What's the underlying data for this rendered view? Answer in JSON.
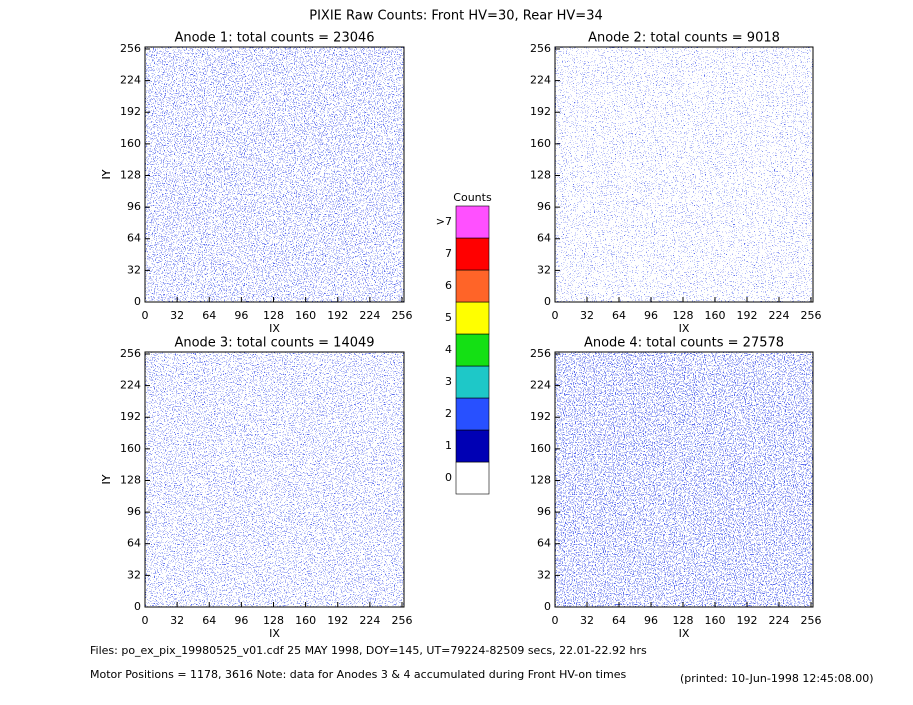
{
  "title": "PIXIE Raw Counts:  Front HV=30, Rear HV=34",
  "chart_data": [
    {
      "type": "heatmap",
      "title": "Anode 1: total counts = 23046",
      "xlabel": "IX",
      "ylabel": "IY",
      "xlim": [
        0,
        258
      ],
      "ylim": [
        0,
        258
      ],
      "xticks": [
        0,
        32,
        64,
        96,
        128,
        160,
        192,
        224,
        256
      ],
      "yticks": [
        0,
        32,
        64,
        96,
        128,
        160,
        192,
        224,
        256
      ]
    },
    {
      "type": "heatmap",
      "title": "Anode 2: total counts = 9018",
      "xlabel": "IX",
      "ylabel": "IY",
      "xlim": [
        0,
        258
      ],
      "ylim": [
        0,
        258
      ],
      "xticks": [
        0,
        32,
        64,
        96,
        128,
        160,
        192,
        224,
        256
      ],
      "yticks": [
        0,
        32,
        64,
        96,
        128,
        160,
        192,
        224,
        256
      ]
    },
    {
      "type": "heatmap",
      "title": "Anode 3: total counts = 14049",
      "xlabel": "IX",
      "ylabel": "IY",
      "xlim": [
        0,
        258
      ],
      "ylim": [
        0,
        258
      ],
      "xticks": [
        0,
        32,
        64,
        96,
        128,
        160,
        192,
        224,
        256
      ],
      "yticks": [
        0,
        32,
        64,
        96,
        128,
        160,
        192,
        224,
        256
      ]
    },
    {
      "type": "heatmap",
      "title": "Anode 4: total counts = 27578",
      "xlabel": "IX",
      "ylabel": "IY",
      "xlim": [
        0,
        258
      ],
      "ylim": [
        0,
        258
      ],
      "xticks": [
        0,
        32,
        64,
        96,
        128,
        160,
        192,
        224,
        256
      ],
      "yticks": [
        0,
        32,
        64,
        96,
        128,
        160,
        192,
        224,
        256
      ]
    }
  ],
  "colorbar": {
    "title": "Counts",
    "labels": [
      "0",
      "1",
      "2",
      "3",
      "4",
      "5",
      "6",
      "7",
      ">7"
    ],
    "colors": [
      "#ffffff",
      "#0000b4",
      "#2850ff",
      "#1ec8c8",
      "#14e014",
      "#ffff00",
      "#ff6428",
      "#ff0000",
      "#ff50ff"
    ]
  },
  "footer": {
    "files": "Files: po_ex_pix_19980525_v01.cdf    25 MAY 1998, DOY=145, UT=79224-82509 secs, 22.01-22.92 hrs",
    "motor": "Motor Positions = 1178, 3616    Note: data for Anodes 3 & 4 accumulated during Front HV-on times",
    "printed": "(printed: 10-Jun-1998 12:45:08.00)"
  }
}
